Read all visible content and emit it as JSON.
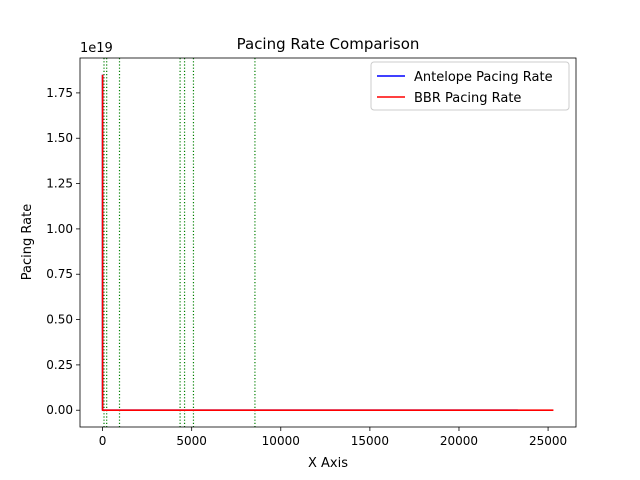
{
  "chart_data": {
    "type": "line",
    "title": "Pacing Rate Comparison",
    "xlabel": "X Axis",
    "ylabel": "Pacing Rate",
    "y_offset_label": "1e19",
    "xlim": [
      -1267,
      26567
    ],
    "ylim": [
      -0.0925,
      1.9425
    ],
    "x_ticks": [
      0,
      5000,
      10000,
      15000,
      20000,
      25000
    ],
    "x_tick_labels": [
      "0",
      "5000",
      "10000",
      "15000",
      "20000",
      "25000"
    ],
    "y_ticks": [
      0.0,
      0.25,
      0.5,
      0.75,
      1.0,
      1.25,
      1.5,
      1.75
    ],
    "y_tick_labels": [
      "0.00",
      "0.25",
      "0.50",
      "0.75",
      "1.00",
      "1.25",
      "1.50",
      "1.75"
    ],
    "grid": false,
    "legend_position": "upper-right",
    "series": [
      {
        "name": "Antelope Pacing Rate",
        "color": "#0000ff",
        "x": [
          0,
          0,
          0,
          80,
          200,
          1000,
          5000,
          10000,
          15000,
          20000,
          23300
        ],
        "y": [
          1.85,
          0.6,
          0.0,
          0.0,
          0.0,
          0.0,
          0.0,
          0.0,
          0.0,
          0.0,
          0.0
        ]
      },
      {
        "name": "BBR Pacing Rate",
        "color": "#ff0000",
        "x": [
          0,
          0,
          0,
          80,
          200,
          1000,
          5000,
          10000,
          15000,
          20000,
          25300
        ],
        "y": [
          1.85,
          0.6,
          0.0,
          0.0,
          0.0,
          0.0,
          0.0,
          0.0,
          0.0,
          0.0,
          0.0
        ]
      }
    ],
    "vertical_markers": {
      "color": "#008000",
      "style": "dotted",
      "x": [
        80,
        230,
        950,
        4350,
        4600,
        5100,
        8550
      ]
    }
  }
}
